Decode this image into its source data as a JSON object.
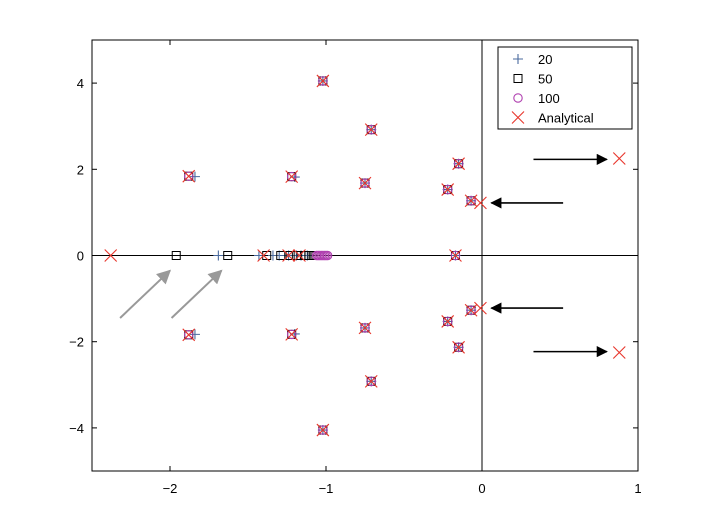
{
  "chart_data": {
    "type": "scatter",
    "title": "",
    "xlabel": "",
    "ylabel": "",
    "xlim": [
      -2.5,
      1
    ],
    "ylim": [
      -5,
      5
    ],
    "xticks": [
      -2,
      -1,
      0,
      1
    ],
    "yticks": [
      -4,
      -2,
      0,
      2,
      4
    ],
    "xtick_labels": [
      "−2",
      "−1",
      "0",
      "1"
    ],
    "ytick_labels": [
      "−4",
      "−2",
      "0",
      "2",
      "4"
    ],
    "grid": false,
    "zero_lines": true,
    "legend_position": "top-right",
    "series": [
      {
        "name": "20",
        "marker": "plus",
        "color": "#4a6a9e",
        "points": [
          [
            -1.02,
            4.05
          ],
          [
            -0.71,
            2.92
          ],
          [
            -0.15,
            2.13
          ],
          [
            -0.22,
            1.53
          ],
          [
            -0.75,
            1.68
          ],
          [
            -1.2,
            1.82
          ],
          [
            -1.84,
            1.83
          ],
          [
            -0.07,
            1.27
          ],
          [
            -0.17,
            0
          ],
          [
            -1.02,
            -4.05
          ],
          [
            -0.71,
            -2.92
          ],
          [
            -0.15,
            -2.13
          ],
          [
            -0.22,
            -1.53
          ],
          [
            -0.75,
            -1.68
          ],
          [
            -1.2,
            -1.82
          ],
          [
            -1.84,
            -1.83
          ],
          [
            -0.07,
            -1.27
          ],
          [
            -1.69,
            0
          ],
          [
            -1.43,
            0
          ],
          [
            -1.34,
            0
          ],
          [
            -1.3,
            0
          ],
          [
            -1.24,
            0
          ],
          [
            -1.19,
            0
          ],
          [
            -1.16,
            0
          ],
          [
            -1.12,
            0
          ]
        ]
      },
      {
        "name": "50",
        "marker": "square",
        "color": "#000000",
        "points": [
          [
            -1.02,
            4.05
          ],
          [
            -0.71,
            2.92
          ],
          [
            -0.15,
            2.13
          ],
          [
            -0.22,
            1.53
          ],
          [
            -0.75,
            1.68
          ],
          [
            -1.22,
            1.83
          ],
          [
            -1.88,
            1.84
          ],
          [
            -0.07,
            1.27
          ],
          [
            -0.17,
            0
          ],
          [
            -1.02,
            -4.05
          ],
          [
            -0.71,
            -2.92
          ],
          [
            -0.15,
            -2.13
          ],
          [
            -0.22,
            -1.53
          ],
          [
            -0.75,
            -1.68
          ],
          [
            -1.22,
            -1.83
          ],
          [
            -1.88,
            -1.84
          ],
          [
            -0.07,
            -1.27
          ],
          [
            -1.96,
            0
          ],
          [
            -1.63,
            0
          ],
          [
            -1.38,
            0
          ],
          [
            -1.29,
            0
          ],
          [
            -1.23,
            0
          ],
          [
            -1.19,
            0
          ],
          [
            -1.16,
            0
          ],
          [
            -1.13,
            0
          ],
          [
            -1.11,
            0
          ],
          [
            -1.09,
            0
          ],
          [
            -1.07,
            0
          ]
        ]
      },
      {
        "name": "100",
        "marker": "circle",
        "color": "#b040b0",
        "points": [
          [
            -1.02,
            4.05
          ],
          [
            -0.71,
            2.92
          ],
          [
            -0.15,
            2.13
          ],
          [
            -0.22,
            1.53
          ],
          [
            -0.75,
            1.68
          ],
          [
            -1.22,
            1.83
          ],
          [
            -1.88,
            1.84
          ],
          [
            -0.07,
            1.27
          ],
          [
            -0.17,
            0
          ],
          [
            -1.02,
            -4.05
          ],
          [
            -0.71,
            -2.92
          ],
          [
            -0.15,
            -2.13
          ],
          [
            -0.22,
            -1.53
          ],
          [
            -0.75,
            -1.68
          ],
          [
            -1.22,
            -1.83
          ],
          [
            -1.88,
            -1.84
          ],
          [
            -0.07,
            -1.27
          ],
          [
            -1.06,
            0
          ],
          [
            -1.05,
            0
          ],
          [
            -1.04,
            0
          ],
          [
            -1.03,
            0
          ],
          [
            -1.02,
            0
          ],
          [
            -1.01,
            0
          ],
          [
            -1.0,
            0
          ],
          [
            -0.99,
            0
          ]
        ]
      },
      {
        "name": "Analytical",
        "marker": "x",
        "color": "#e8352b",
        "points": [
          [
            -1.02,
            4.05
          ],
          [
            -0.71,
            2.92
          ],
          [
            -0.15,
            2.13
          ],
          [
            -0.22,
            1.53
          ],
          [
            -0.75,
            1.68
          ],
          [
            -1.22,
            1.83
          ],
          [
            -1.88,
            1.84
          ],
          [
            -0.07,
            1.27
          ],
          [
            -0.17,
            0
          ],
          [
            -1.02,
            -4.05
          ],
          [
            -0.71,
            -2.92
          ],
          [
            -0.15,
            -2.13
          ],
          [
            -0.22,
            -1.53
          ],
          [
            -0.75,
            -1.68
          ],
          [
            -1.22,
            -1.83
          ],
          [
            -1.88,
            -1.84
          ],
          [
            -0.07,
            -1.27
          ],
          [
            -2.38,
            0
          ],
          [
            -1.4,
            0
          ],
          [
            -1.24,
            0
          ],
          [
            -1.17,
            0
          ],
          [
            0.88,
            2.25
          ],
          [
            0.88,
            -2.25
          ],
          [
            -0.01,
            1.22
          ],
          [
            -0.01,
            -1.22
          ]
        ]
      }
    ],
    "annotations": [
      {
        "type": "arrow",
        "color": "#000000",
        "from": [
          0.33,
          2.23
        ],
        "to": [
          0.8,
          2.23
        ]
      },
      {
        "type": "arrow",
        "color": "#000000",
        "from": [
          0.33,
          -2.23
        ],
        "to": [
          0.8,
          -2.23
        ]
      },
      {
        "type": "arrow",
        "color": "#000000",
        "from": [
          0.52,
          1.22
        ],
        "to": [
          0.06,
          1.22
        ]
      },
      {
        "type": "arrow",
        "color": "#000000",
        "from": [
          0.52,
          -1.22
        ],
        "to": [
          0.06,
          -1.22
        ]
      },
      {
        "type": "arrow",
        "color": "#999999",
        "from": [
          -2.32,
          -1.45
        ],
        "to": [
          -2.0,
          -0.35
        ]
      },
      {
        "type": "arrow",
        "color": "#999999",
        "from": [
          -1.99,
          -1.45
        ],
        "to": [
          -1.67,
          -0.35
        ]
      }
    ]
  }
}
